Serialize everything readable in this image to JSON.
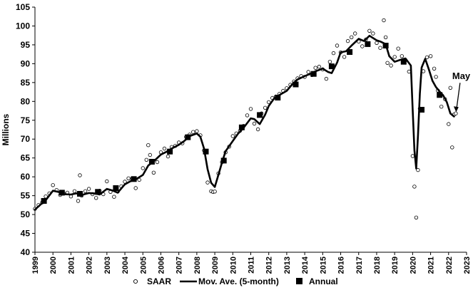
{
  "chart_data": {
    "type": "line",
    "title": "",
    "xlabel": "",
    "ylabel": "Millions",
    "xlim": [
      1999,
      2023
    ],
    "ylim": [
      40,
      105
    ],
    "y_ticks": [
      40,
      45,
      50,
      55,
      60,
      65,
      70,
      75,
      80,
      85,
      90,
      95,
      100,
      105
    ],
    "x_ticks": [
      "1999",
      "2000",
      "2001",
      "2002",
      "2003",
      "2004",
      "2005",
      "2006",
      "2007",
      "2008",
      "2009",
      "2010",
      "2011",
      "2012",
      "2013",
      "2014",
      "2015",
      "2016",
      "2017",
      "2018",
      "2019",
      "2020",
      "2021",
      "2022",
      "2023"
    ],
    "grid": "none",
    "legend_placement": "bottom",
    "legend": [
      "SAAR",
      "Mov. Ave. (5-month)",
      "Annual"
    ],
    "annotation": "May",
    "series": [
      {
        "name": "SAAR",
        "marker": "open-circle",
        "x": [
          1999.0,
          1999.2,
          1999.4,
          1999.6,
          1999.8,
          2000.0,
          2000.2,
          2000.4,
          2000.6,
          2000.8,
          2001.0,
          2001.2,
          2001.4,
          2001.5,
          2001.6,
          2001.8,
          2002.0,
          2002.2,
          2002.4,
          2002.6,
          2002.8,
          2003.0,
          2003.2,
          2003.4,
          2003.6,
          2003.8,
          2004.0,
          2004.2,
          2004.4,
          2004.6,
          2004.8,
          2005.0,
          2005.2,
          2005.3,
          2005.4,
          2005.6,
          2005.8,
          2006.0,
          2006.2,
          2006.4,
          2006.6,
          2006.8,
          2007.0,
          2007.2,
          2007.4,
          2007.6,
          2007.8,
          2008.0,
          2008.2,
          2008.4,
          2008.6,
          2008.8,
          2008.9,
          2009.0,
          2009.2,
          2009.4,
          2009.6,
          2009.8,
          2010.0,
          2010.2,
          2010.4,
          2010.6,
          2010.8,
          2011.0,
          2011.2,
          2011.4,
          2011.6,
          2011.8,
          2012.0,
          2012.2,
          2012.4,
          2012.6,
          2012.8,
          2013.0,
          2013.2,
          2013.4,
          2013.6,
          2013.8,
          2014.0,
          2014.2,
          2014.4,
          2014.6,
          2014.8,
          2015.0,
          2015.2,
          2015.4,
          2015.6,
          2015.8,
          2016.0,
          2016.2,
          2016.4,
          2016.6,
          2016.8,
          2017.0,
          2017.2,
          2017.4,
          2017.6,
          2017.8,
          2018.0,
          2018.2,
          2018.4,
          2018.5,
          2018.6,
          2018.8,
          2019.0,
          2019.2,
          2019.4,
          2019.6,
          2019.8,
          2020.0,
          2020.1,
          2020.2,
          2020.3,
          2020.4,
          2020.6,
          2020.8,
          2021.0,
          2021.2,
          2021.3,
          2021.4,
          2021.6,
          2021.8,
          2022.0,
          2022.1,
          2022.2,
          2022.3,
          2022.4
        ],
        "values": [
          51.5,
          52.5,
          53.2,
          54.8,
          55.6,
          57.8,
          56.5,
          55.2,
          55.6,
          55.8,
          54.8,
          56.2,
          53.6,
          60.4,
          55.0,
          56.2,
          56.8,
          55.4,
          54.4,
          56.3,
          55.4,
          58.8,
          56.0,
          54.7,
          56.1,
          57.5,
          58.7,
          59.6,
          59.5,
          57.0,
          59.2,
          62.3,
          64.5,
          68.4,
          65.8,
          61.1,
          63.9,
          66.5,
          67.5,
          65.4,
          67.9,
          68.2,
          69.1,
          68.9,
          70.6,
          71.2,
          71.9,
          72.1,
          71.0,
          67.0,
          58.5,
          56.2,
          56.0,
          56.1,
          60.9,
          63.9,
          66.5,
          68.0,
          70.8,
          71.5,
          72.2,
          73.5,
          76.3,
          78.0,
          74.1,
          72.6,
          76.8,
          78.3,
          79.8,
          80.9,
          81.3,
          82.0,
          82.8,
          83.5,
          84.4,
          85.3,
          86.1,
          86.7,
          86.5,
          87.8,
          87.0,
          88.9,
          89.2,
          88.5,
          86.0,
          90.5,
          92.8,
          94.8,
          93.0,
          91.8,
          96.0,
          97.0,
          98.0,
          95.9,
          94.6,
          96.4,
          98.7,
          98.0,
          95.5,
          94.2,
          101.5,
          97.0,
          90.2,
          89.5,
          91.8,
          94.0,
          92.0,
          91.0,
          87.9,
          65.5,
          57.4,
          49.2,
          61.8,
          78.1,
          88.0,
          91.7,
          92.0,
          88.7,
          86.5,
          82.9,
          78.6,
          80.6,
          74.0,
          83.6,
          67.8,
          76.5,
          76.8
        ]
      },
      {
        "name": "Mov. Ave. (5-month)",
        "marker": "none",
        "x": [
          1999.0,
          1999.3,
          1999.6,
          2000.0,
          2000.3,
          2000.6,
          2001.0,
          2001.3,
          2001.6,
          2002.0,
          2002.3,
          2002.6,
          2003.0,
          2003.3,
          2003.6,
          2004.0,
          2004.3,
          2004.6,
          2005.0,
          2005.3,
          2005.6,
          2006.0,
          2006.3,
          2006.6,
          2007.0,
          2007.3,
          2007.6,
          2008.0,
          2008.2,
          2008.4,
          2008.6,
          2008.8,
          2009.0,
          2009.2,
          2009.4,
          2009.6,
          2010.0,
          2010.3,
          2010.6,
          2011.0,
          2011.2,
          2011.5,
          2011.8,
          2012.0,
          2012.3,
          2012.6,
          2013.0,
          2013.3,
          2013.6,
          2014.0,
          2014.3,
          2014.6,
          2015.0,
          2015.3,
          2015.5,
          2015.8,
          2016.0,
          2016.3,
          2016.6,
          2017.0,
          2017.3,
          2017.6,
          2018.0,
          2018.2,
          2018.5,
          2018.7,
          2019.0,
          2019.3,
          2019.6,
          2019.9,
          2020.0,
          2020.1,
          2020.2,
          2020.3,
          2020.4,
          2020.5,
          2020.7,
          2020.9,
          2021.1,
          2021.3,
          2021.5,
          2021.7,
          2021.9,
          2022.1,
          2022.3
        ],
        "values": [
          51.3,
          52.6,
          53.8,
          56.3,
          56.0,
          55.4,
          55.3,
          55.6,
          55.2,
          55.7,
          55.6,
          55.3,
          56.8,
          56.4,
          55.8,
          58.0,
          58.8,
          59.3,
          60.5,
          63.0,
          64.1,
          65.9,
          66.6,
          67.5,
          68.5,
          69.5,
          70.8,
          71.5,
          70.6,
          67.5,
          62.0,
          58.4,
          57.3,
          60.5,
          63.8,
          66.8,
          69.5,
          71.5,
          73.0,
          75.5,
          75.3,
          74.0,
          76.5,
          78.8,
          80.8,
          81.7,
          82.8,
          84.5,
          85.8,
          86.7,
          87.3,
          88.0,
          88.7,
          87.8,
          87.5,
          90.3,
          93.0,
          93.3,
          94.8,
          96.6,
          96.0,
          97.4,
          96.2,
          95.9,
          95.2,
          92.0,
          90.5,
          91.0,
          91.4,
          89.5,
          78.0,
          67.0,
          62.2,
          71.0,
          82.0,
          89.0,
          91.3,
          88.5,
          85.5,
          83.8,
          82.6,
          81.6,
          79.8,
          76.8,
          76.0
        ]
      },
      {
        "name": "Annual",
        "marker": "filled-square",
        "x": [
          1999.5,
          2000.5,
          2001.5,
          2002.5,
          2003.5,
          2004.5,
          2005.5,
          2006.5,
          2007.5,
          2008.5,
          2009.5,
          2010.5,
          2011.5,
          2012.5,
          2013.5,
          2014.5,
          2015.5,
          2016.5,
          2017.5,
          2018.5,
          2019.5,
          2020.5,
          2021.5
        ],
        "values": [
          53.6,
          55.8,
          55.5,
          56.0,
          57.0,
          59.4,
          64.0,
          66.7,
          70.5,
          66.7,
          64.3,
          73.1,
          76.4,
          81.0,
          84.5,
          87.3,
          89.3,
          93.1,
          95.2,
          94.8,
          90.5,
          77.8,
          81.7
        ]
      }
    ]
  }
}
